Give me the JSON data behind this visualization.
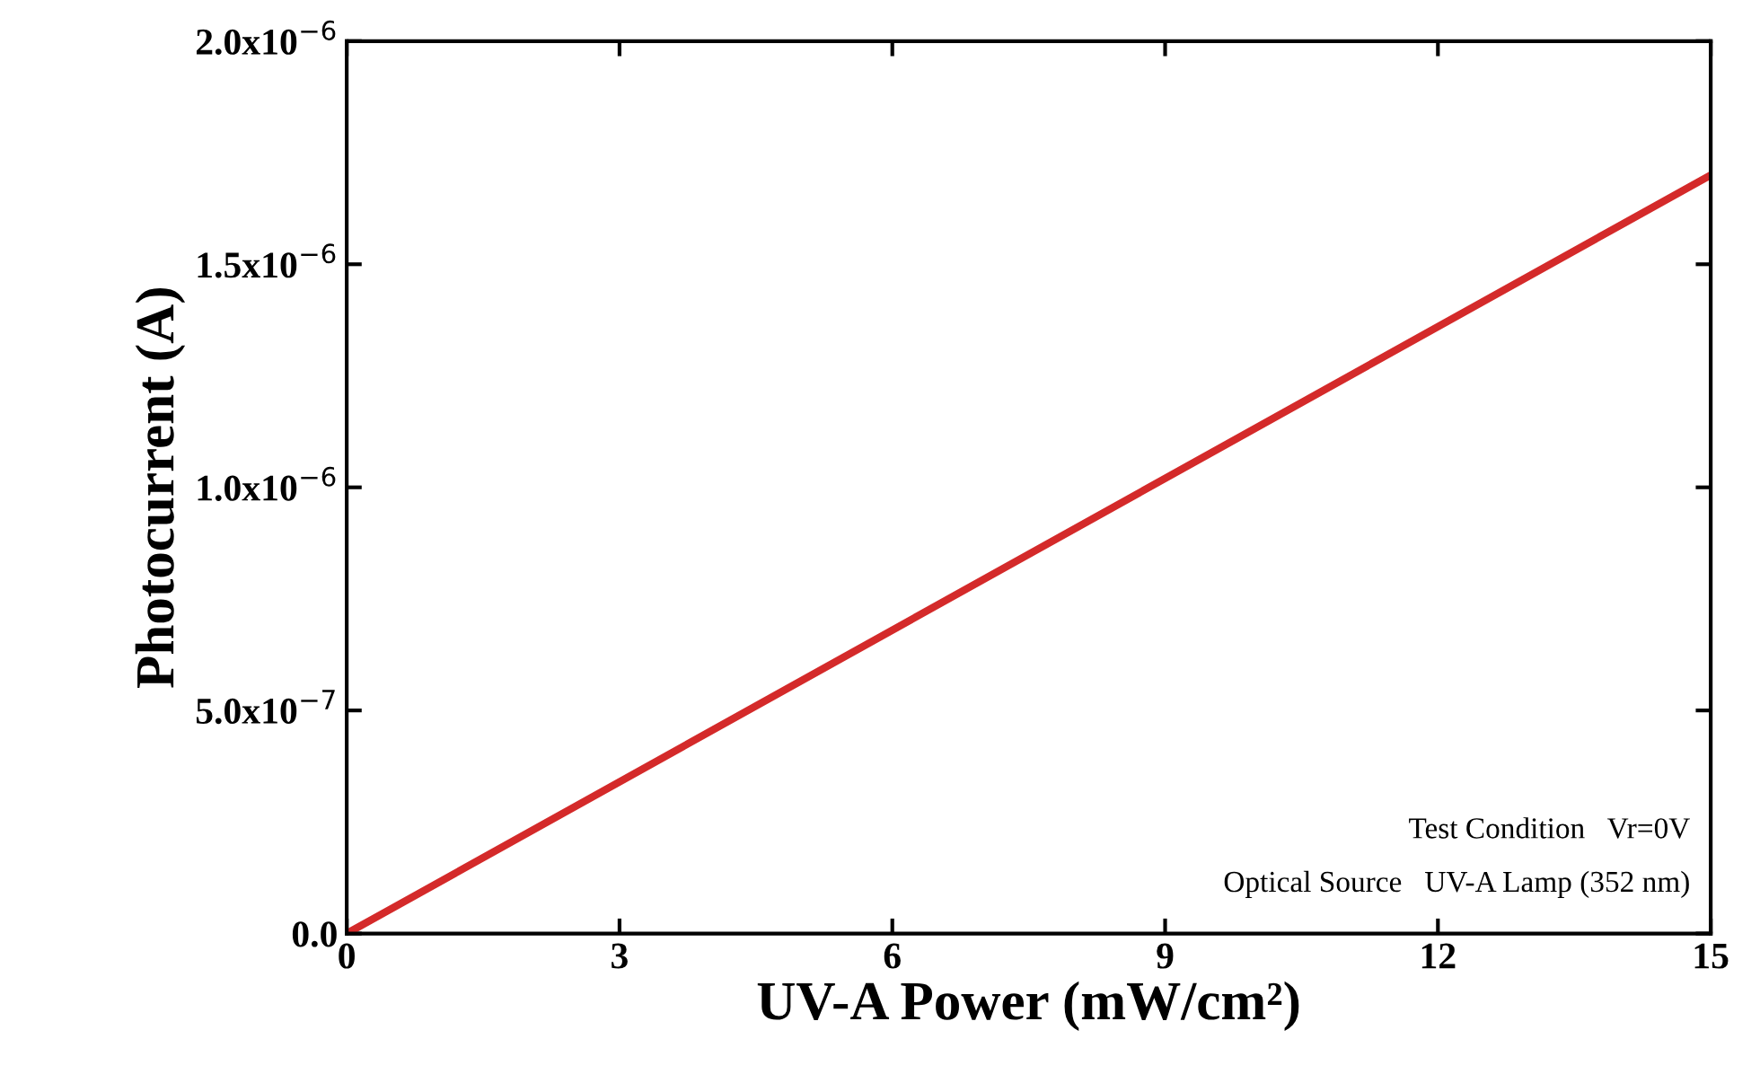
{
  "chart_data": {
    "type": "line",
    "xlabel": "UV-A Power (mW/cm²)",
    "ylabel": "Photocurrent (A)",
    "series": [
      {
        "color": "#d42a2a",
        "x": [
          0,
          15
        ],
        "values": [
          0,
          1.7e-06
        ]
      }
    ],
    "xlim": [
      0,
      15
    ],
    "xticks": [
      0,
      3,
      6,
      9,
      12,
      15
    ],
    "ylim": [
      0,
      2e-06
    ],
    "yticks": [
      {
        "value": 0,
        "label": "0.0"
      },
      {
        "value": 5e-07,
        "label": "5.0x10$^{−7}$"
      },
      {
        "value": 1e-06,
        "label": "1.0x10$^{−6}$"
      },
      {
        "value": 1.5e-06,
        "label": "1.5x10$^{−6}$"
      },
      {
        "value": 2e-06,
        "label": "2.0x10$^{−6}$"
      }
    ],
    "annotations": [
      "Test Condition   Vr=0V",
      "Optical Source   UV-A Lamp (352 nm)"
    ],
    "grid": false,
    "marker": "none",
    "line_style": "solid"
  }
}
